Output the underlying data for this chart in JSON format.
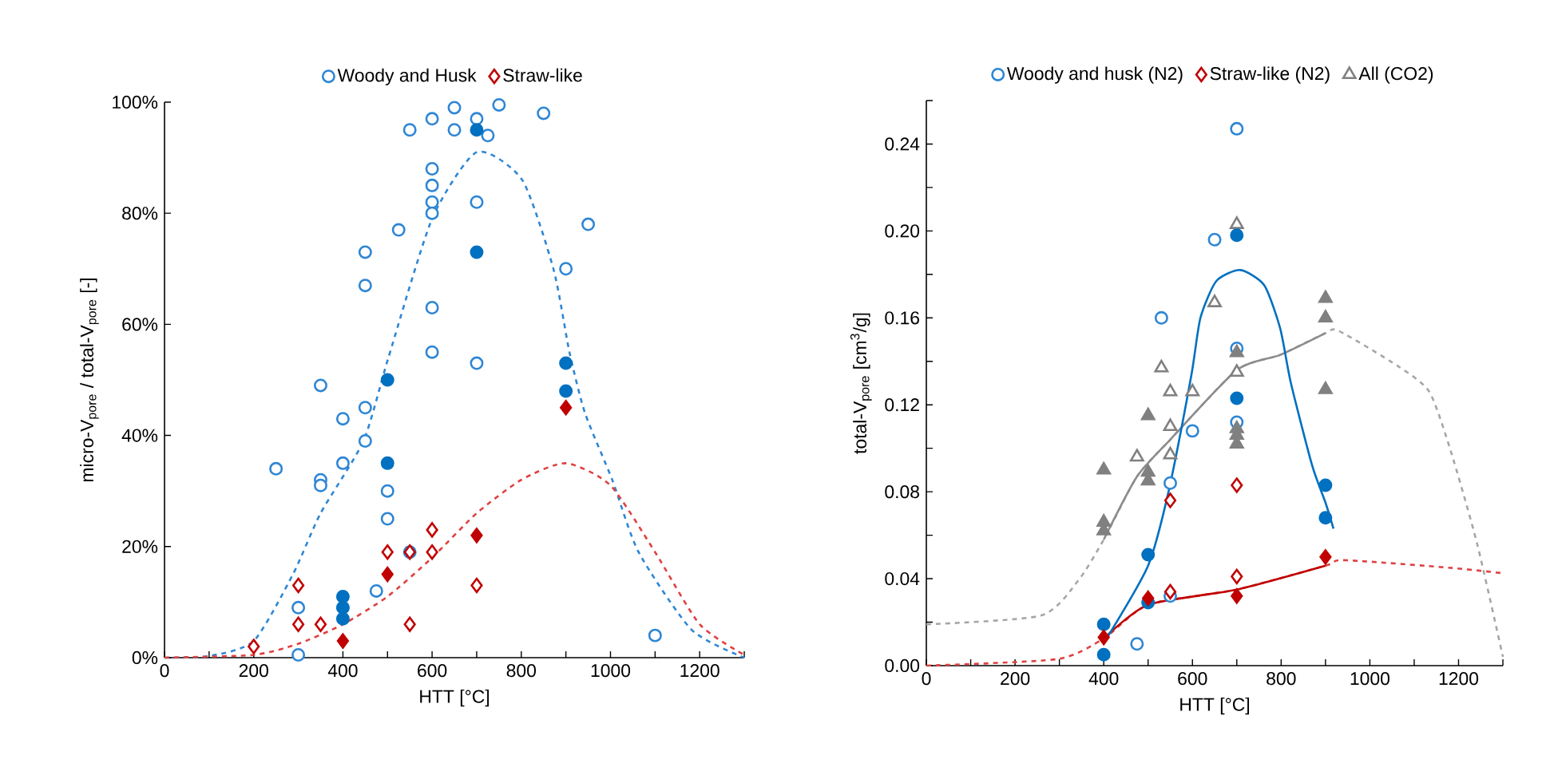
{
  "chart_data": [
    {
      "type": "scatter",
      "xlabel": "HTT [°C]",
      "ylabel": "micro-V$_{pore}$ / total-V$_{pore}$ [-]",
      "xlim": [
        0,
        1300
      ],
      "ylim": [
        0,
        100
      ],
      "xticks": [
        0,
        {
          "value": 100,
          "label": null
        },
        200,
        {
          "value": 300,
          "label": null
        },
        400,
        {
          "value": 500,
          "label": null
        },
        600,
        {
          "value": 700,
          "label": null
        },
        800,
        {
          "value": 900,
          "label": null
        },
        1000,
        {
          "value": 1100,
          "label": null
        },
        1200,
        {
          "value": 1300,
          "label": null
        }
      ],
      "yticks": [
        {
          "value": 0,
          "label": "0%"
        },
        {
          "value": 20,
          "label": "20%"
        },
        {
          "value": 40,
          "label": "40%"
        },
        {
          "value": 60,
          "label": "60%"
        },
        {
          "value": 80,
          "label": "80%"
        },
        {
          "value": 100,
          "label": "100%"
        }
      ],
      "legend": "top",
      "series": [
        {
          "type": "line",
          "color": "#2e86d4",
          "line_style": "dashed",
          "x": [
            0,
            100,
            200,
            288,
            350,
            446,
            502,
            600,
            700,
            802,
            872,
            908,
            943,
            1004,
            1063,
            1182,
            1300
          ],
          "values": [
            0,
            0.3,
            3,
            15,
            26,
            39,
            54,
            79,
            91,
            86,
            70,
            55,
            44,
            32,
            19,
            5,
            0
          ]
        },
        {
          "type": "line",
          "color": "#e04040",
          "line_style": "dashed",
          "x": [
            0,
            200,
            300,
            400,
            500,
            600,
            700,
            800,
            900,
            1000,
            1100,
            1200,
            1300
          ],
          "values": [
            0,
            0.5,
            2.5,
            6,
            11,
            18,
            26,
            32,
            35,
            31,
            19,
            6,
            0.5
          ]
        },
        {
          "name": "Woody and Husk",
          "type": "scatter",
          "marker": "circle",
          "color": "#2e86d4",
          "x": [
            250,
            300,
            300,
            350,
            350,
            350,
            400,
            400,
            450,
            450,
            450,
            450,
            475,
            500,
            500,
            525,
            550,
            550,
            600,
            600,
            600,
            600,
            600,
            600,
            600,
            650,
            650,
            700,
            700,
            700,
            725,
            750,
            850,
            900,
            950,
            1100
          ],
          "values": [
            34,
            9,
            0.5,
            49,
            32,
            31,
            43,
            35,
            73,
            67,
            45,
            39,
            12,
            30,
            25,
            77,
            95,
            19,
            97,
            88,
            85,
            82,
            80,
            63,
            55,
            99,
            95,
            97,
            82,
            53,
            94,
            99.5,
            98,
            70,
            78,
            4
          ]
        },
        {
          "name": "Straw-like",
          "type": "scatter",
          "marker": "diamond",
          "color": "#c00000",
          "x": [
            200,
            300,
            300,
            350,
            500,
            550,
            550,
            600,
            600,
            700
          ],
          "values": [
            2,
            13,
            6,
            6,
            19,
            19,
            6,
            23,
            19,
            13
          ]
        },
        {
          "type": "scatter",
          "marker": "circle",
          "color": "#0070c0",
          "x": [
            400,
            400,
            400,
            500,
            500,
            700,
            700,
            900,
            900
          ],
          "values": [
            11,
            9,
            7,
            50,
            35,
            95,
            73,
            53,
            48
          ]
        },
        {
          "type": "scatter",
          "marker": "diamond",
          "color": "#c00000",
          "x": [
            400,
            500,
            700,
            900
          ],
          "values": [
            3,
            15,
            22,
            45
          ]
        }
      ]
    },
    {
      "type": "scatter",
      "xlabel": "HTT [°C]",
      "ylabel": "total-V$_{pore}$ [cm$^{3}$/g]",
      "xlim": [
        0,
        1300
      ],
      "ylim": [
        0,
        0.26
      ],
      "xticks": [
        0,
        {
          "value": 100,
          "label": null
        },
        200,
        {
          "value": 300,
          "label": null
        },
        400,
        {
          "value": 500,
          "label": null
        },
        600,
        {
          "value": 700,
          "label": null
        },
        800,
        {
          "value": 900,
          "label": null
        },
        1000,
        {
          "value": 1100,
          "label": null
        },
        1200,
        {
          "value": 1300,
          "label": null
        }
      ],
      "yticks": [
        {
          "value": 0,
          "label": "0.00"
        },
        {
          "value": 0.02,
          "label": null
        },
        {
          "value": 0.04,
          "label": "0.04"
        },
        {
          "value": 0.06,
          "label": null
        },
        {
          "value": 0.08,
          "label": "0.08"
        },
        {
          "value": 0.1,
          "label": null
        },
        {
          "value": 0.12,
          "label": "0.12"
        },
        {
          "value": 0.14,
          "label": null
        },
        {
          "value": 0.16,
          "label": "0.16"
        },
        {
          "value": 0.18,
          "label": null
        },
        {
          "value": 0.2,
          "label": "0.20"
        },
        {
          "value": 0.22,
          "label": null
        },
        {
          "value": 0.24,
          "label": "0.24"
        },
        {
          "value": 0.26,
          "label": null
        }
      ],
      "legend": "top",
      "series": [
        {
          "type": "line",
          "color": "#a6a6a6",
          "line_style": "dashed",
          "x": [
            0,
            258,
            342,
            400,
            475,
            550,
            700,
            798,
            900,
            930,
            1062,
            1134,
            1182,
            1242,
            1300
          ],
          "values": [
            0.019,
            0.023,
            0.039,
            0.058,
            0.087,
            0.104,
            0.136,
            0.143,
            0.153,
            0.154,
            0.138,
            0.126,
            0.099,
            0.056,
            0.004
          ]
        },
        {
          "type": "line",
          "color": "#8c8c8c",
          "line_style": "solid",
          "x": [
            400,
            475,
            550,
            700,
            798,
            900
          ],
          "values": [
            0.058,
            0.087,
            0.104,
            0.136,
            0.143,
            0.153
          ]
        },
        {
          "type": "line",
          "color": "#e04040",
          "line_style": "dashed",
          "x": [
            0,
            295,
            400,
            500,
            700,
            900,
            942,
            1182,
            1300
          ],
          "values": [
            0,
            0.003,
            0.0125,
            0.028,
            0.035,
            0.046,
            0.0485,
            0.045,
            0.0425
          ]
        },
        {
          "type": "line",
          "color": "#c00000",
          "line_style": "solid",
          "x": [
            400,
            500,
            700,
            900
          ],
          "values": [
            0.0125,
            0.028,
            0.035,
            0.046
          ]
        },
        {
          "type": "line",
          "color": "#0070c0",
          "line_style": "solid",
          "x": [
            408,
            500,
            546,
            597,
            618,
            654,
            708,
            762,
            798,
            822,
            870,
            900,
            918
          ],
          "values": [
            0.013,
            0.046,
            0.08,
            0.133,
            0.16,
            0.177,
            0.182,
            0.175,
            0.155,
            0.13,
            0.092,
            0.075,
            0.063
          ]
        },
        {
          "name": "Woody and husk (N2)",
          "type": "scatter",
          "marker": "circle",
          "color": "#2e86d4",
          "x": [
            700,
            650,
            530,
            700,
            600,
            700,
            550,
            550,
            475
          ],
          "values": [
            0.247,
            0.196,
            0.16,
            0.146,
            0.108,
            0.112,
            0.084,
            0.032,
            0.01
          ]
        },
        {
          "name": "Straw-like (N2)",
          "type": "scatter",
          "marker": "diamond",
          "color": "#c00000",
          "x": [
            700,
            550,
            700,
            550
          ],
          "values": [
            0.083,
            0.076,
            0.041,
            0.034
          ]
        },
        {
          "name": "All (CO2)",
          "type": "scatter",
          "marker": "triangle",
          "color": "#808080",
          "x": [
            700,
            650,
            530,
            700,
            550,
            600,
            550,
            475,
            550
          ],
          "values": [
            0.203,
            0.167,
            0.137,
            0.135,
            0.126,
            0.126,
            0.11,
            0.096,
            0.097
          ]
        },
        {
          "type": "scatter",
          "marker": "circle",
          "color": "#0070c0",
          "x": [
            700,
            700,
            900,
            900,
            500,
            500,
            400,
            400
          ],
          "values": [
            0.198,
            0.123,
            0.083,
            0.068,
            0.051,
            0.029,
            0.019,
            0.005
          ]
        },
        {
          "type": "scatter",
          "marker": "diamond",
          "color": "#c00000",
          "x": [
            900,
            700,
            500,
            400
          ],
          "values": [
            0.05,
            0.032,
            0.031,
            0.013
          ]
        },
        {
          "type": "scatter",
          "marker": "triangle",
          "color": "#808080",
          "x": [
            900,
            900,
            700,
            900,
            500,
            400,
            500,
            500,
            700,
            700,
            700,
            400,
            400
          ],
          "values": [
            0.169,
            0.16,
            0.144,
            0.127,
            0.115,
            0.09,
            0.089,
            0.085,
            0.109,
            0.106,
            0.102,
            0.066,
            0.062
          ]
        }
      ]
    }
  ]
}
